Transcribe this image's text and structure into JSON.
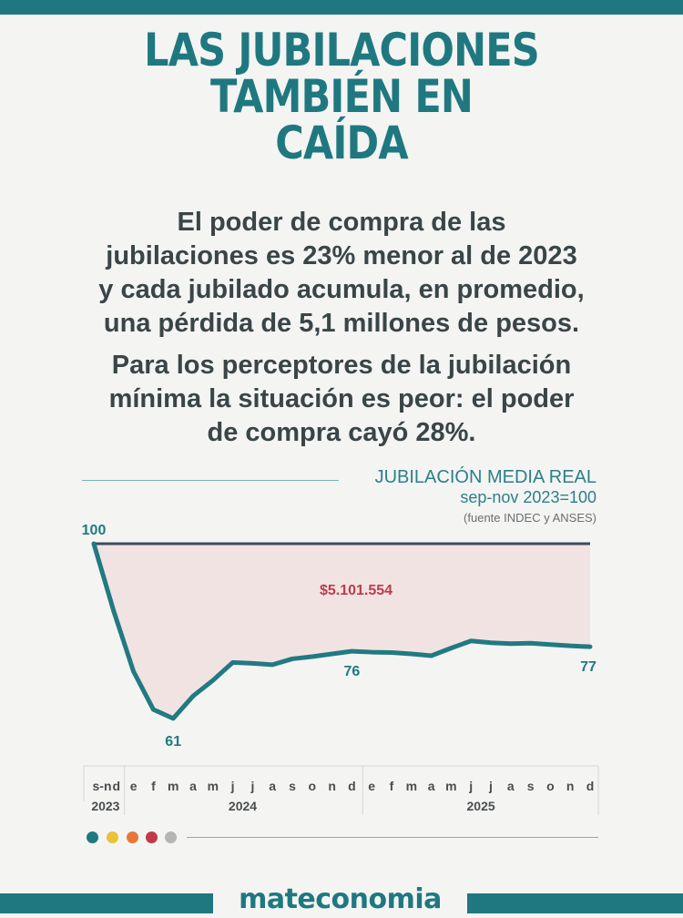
{
  "title": {
    "lines": [
      "LAS JUBILACIONES",
      "TAMBIÉN EN",
      "CAÍDA"
    ]
  },
  "paragraphs": {
    "p1": [
      "El poder de compra de las",
      "jubilaciones es 23% menor al de 2023",
      "y cada jubilado acumula, en promedio,",
      "una pérdida de 5,1 millones de pesos."
    ],
    "p2": [
      "Para los perceptores de la jubilación",
      "mínima la situación es peor: el poder",
      "de compra cayó 28%."
    ]
  },
  "colors": {
    "brand_teal": "#1f7880",
    "line": "#217a82",
    "baseline": "#3d4a5c",
    "shade": "#f2e3e3",
    "annotation_red": "#c03a48",
    "text_dark": "#3a4547",
    "palette": [
      "#1f7a80",
      "#e8c23a",
      "#e8773a",
      "#c23a48",
      "#b5b5b5"
    ]
  },
  "chart_data": {
    "type": "line",
    "title": "JUBILACIÓN MEDIA REAL",
    "subtitle": "sep-nov 2023=100",
    "source": "(fuente INDEC y ANSES)",
    "x": [
      "s-n",
      "d",
      "e",
      "f",
      "m",
      "a",
      "m",
      "j",
      "j",
      "a",
      "s",
      "o",
      "n",
      "d",
      "e",
      "f",
      "m",
      "a",
      "m",
      "j",
      "j",
      "a",
      "s",
      "o",
      "n",
      "d"
    ],
    "year_groups": [
      {
        "label": "2023",
        "count": 2
      },
      {
        "label": "2024",
        "count": 12
      },
      {
        "label": "2025",
        "count": 12
      }
    ],
    "series": [
      {
        "name": "Jubilación media real",
        "values": [
          100,
          85,
          71.5,
          63,
          61,
          66,
          69.5,
          73.5,
          73.3,
          73,
          74.3,
          74.8,
          75.4,
          76,
          75.8,
          75.7,
          75.4,
          75,
          76.7,
          78.3,
          77.9,
          77.7,
          77.8,
          77.5,
          77.2,
          77
        ]
      }
    ],
    "baseline": 100,
    "ylim": [
      58,
      102
    ],
    "data_labels": [
      {
        "index": 0,
        "text": "100",
        "position": "above"
      },
      {
        "index": 4,
        "text": "61",
        "position": "below"
      },
      {
        "index": 13,
        "text": "76",
        "position": "below"
      },
      {
        "index": 25,
        "text": "77",
        "position": "below"
      }
    ],
    "annotation": "$5.101.554",
    "xlabel": "",
    "ylabel": "",
    "grid": false
  },
  "footer": {
    "brand": "mateconomia"
  }
}
